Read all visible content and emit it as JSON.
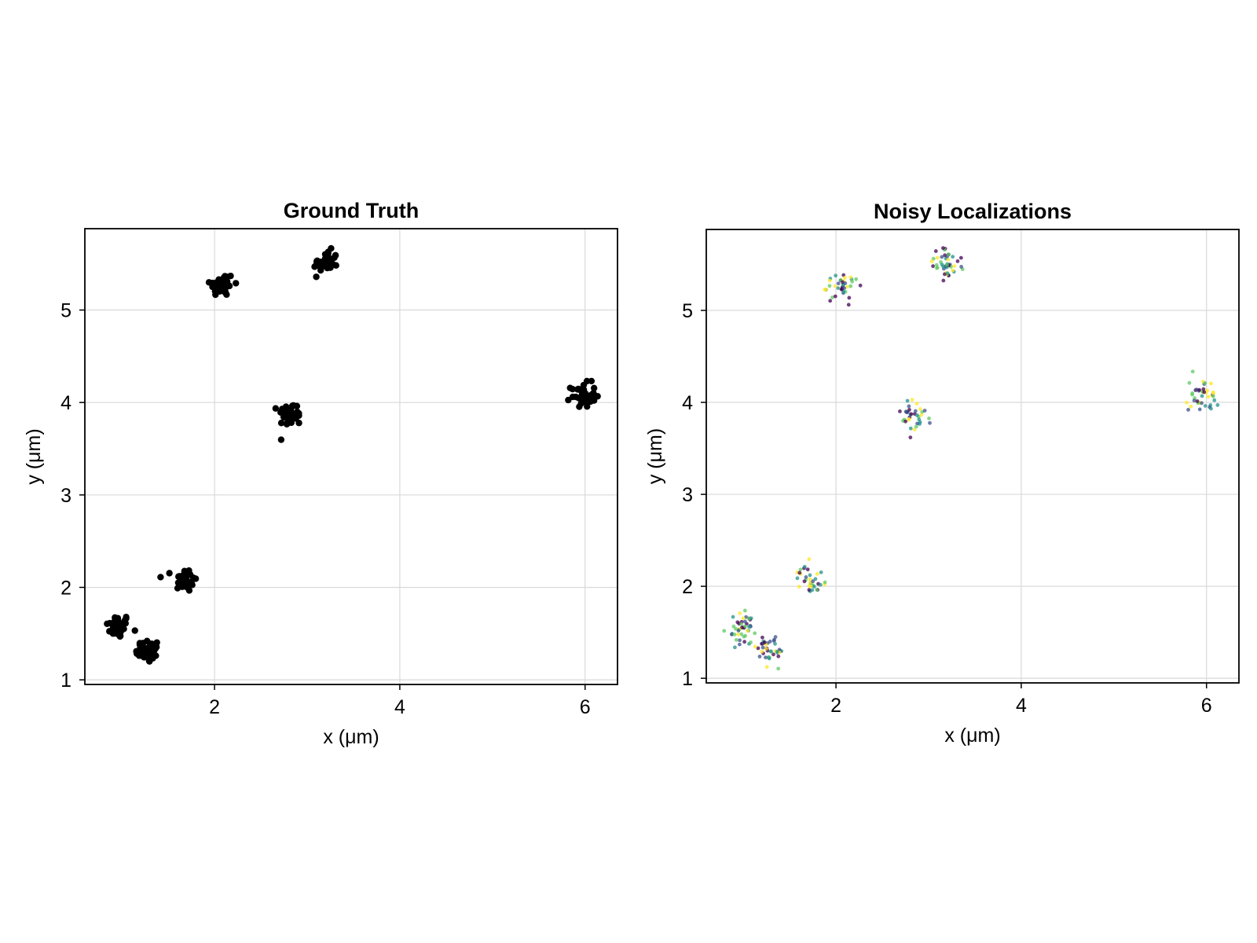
{
  "chart_data": [
    {
      "type": "scatter",
      "title": "Ground Truth",
      "xlabel": "x (μm)",
      "ylabel": "y (μm)",
      "xlim": [
        0.6,
        6.35
      ],
      "ylim": [
        0.95,
        5.88
      ],
      "xticks": [
        2,
        4,
        6
      ],
      "yticks": [
        1,
        2,
        3,
        4,
        5
      ],
      "grid": true,
      "legend": "none",
      "marker_color": "#000000",
      "clusters": [
        {
          "x": 0.96,
          "y": 1.58,
          "n": 40
        },
        {
          "x": 1.28,
          "y": 1.31,
          "n": 36
        },
        {
          "x": 1.68,
          "y": 2.08,
          "n": 36
        },
        {
          "x": 2.08,
          "y": 5.28,
          "n": 40
        },
        {
          "x": 2.82,
          "y": 3.87,
          "n": 38
        },
        {
          "x": 3.2,
          "y": 5.51,
          "n": 38
        },
        {
          "x": 5.98,
          "y": 4.08,
          "n": 38
        }
      ]
    },
    {
      "type": "scatter",
      "title": "Noisy Localizations",
      "xlabel": "x (μm)",
      "ylabel": "y (μm)",
      "xlim": [
        0.6,
        6.35
      ],
      "ylim": [
        0.95,
        5.88
      ],
      "xticks": [
        2,
        4,
        6
      ],
      "yticks": [
        1,
        2,
        3,
        4,
        5
      ],
      "grid": true,
      "legend": "none",
      "color_map": [
        "#440154",
        "#3b528b",
        "#21918c",
        "#5ec962",
        "#fde725"
      ],
      "clusters": [
        {
          "x": 0.98,
          "y": 1.55,
          "n": 45
        },
        {
          "x": 1.28,
          "y": 1.29,
          "n": 40
        },
        {
          "x": 1.72,
          "y": 2.08,
          "n": 35
        },
        {
          "x": 2.07,
          "y": 5.26,
          "n": 38
        },
        {
          "x": 2.83,
          "y": 3.86,
          "n": 36
        },
        {
          "x": 3.2,
          "y": 5.5,
          "n": 45
        },
        {
          "x": 5.98,
          "y": 4.08,
          "n": 42
        }
      ]
    }
  ]
}
